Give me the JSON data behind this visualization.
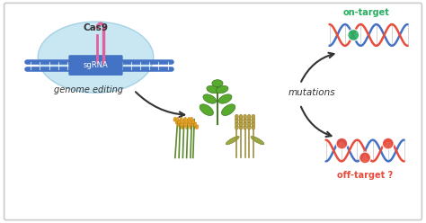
{
  "bg_color": "#ffffff",
  "border_color": "#cccccc",
  "labels": {
    "cas9": "Cas9",
    "sgrna": "sgRNA",
    "genome_editing": "genome editing",
    "mutations": "mutations",
    "on_target": "on-target",
    "off_target": "off-target ?"
  },
  "colors": {
    "cas9_blob": "#b8dff0",
    "dna_blue": "#4472c4",
    "dna_red": "#e74c3c",
    "on_target_green": "#27ae60",
    "off_target_red": "#e74c3c",
    "plant_green": "#5a8a3c",
    "plant_orange": "#e8a020",
    "plant_wheat": "#c8b060",
    "arrow_color": "#333333",
    "cas9_label": "#333333",
    "on_target_label": "#27ae60",
    "off_target_label": "#e74c3c",
    "grna_pink": "#e060a0",
    "border": "#cccccc"
  }
}
